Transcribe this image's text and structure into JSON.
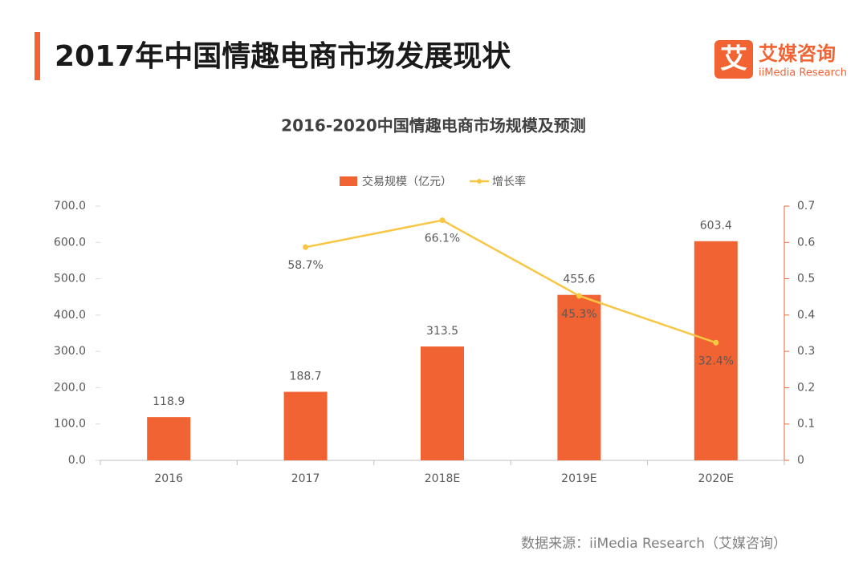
{
  "header": {
    "title": "2017年中国情趣电商市场发展现状",
    "logo": "艾",
    "brand": "艾媒咨询",
    "brand_en": "iiMedia Research"
  },
  "chart_data": {
    "type": "bar",
    "title": "2016-2020中国情趣电商市场规模及预测",
    "categories": [
      "2016",
      "2017",
      "2018E",
      "2019E",
      "2020E"
    ],
    "series": [
      {
        "name": "交易规模（亿元）",
        "type": "bar",
        "color": "#f26333",
        "values": [
          118.9,
          188.7,
          313.5,
          455.6,
          603.4
        ]
      },
      {
        "name": "增长率",
        "type": "line",
        "axis": "y2",
        "color": "#f7c744",
        "values": [
          null,
          0.587,
          0.661,
          0.453,
          0.324
        ],
        "value_labels": [
          null,
          "58.7%",
          "66.1%",
          "45.3%",
          "32.4%"
        ]
      }
    ],
    "ylim": [
      0,
      700
    ],
    "yticks": [
      {
        "value": 0,
        "label": "0.0"
      },
      {
        "value": 100,
        "label": "100.0"
      },
      {
        "value": 200,
        "label": "200.0"
      },
      {
        "value": 300,
        "label": "300.0"
      },
      {
        "value": 400,
        "label": "400.0"
      },
      {
        "value": 500,
        "label": "500.0"
      },
      {
        "value": 600,
        "label": "600.0"
      },
      {
        "value": 700,
        "label": "700.0"
      }
    ],
    "y2lim": [
      0,
      0.7
    ],
    "y2ticks": [
      0,
      0.1,
      0.2,
      0.3,
      0.4,
      0.5,
      0.6,
      0.7
    ],
    "legend": "top",
    "source": "数据来源：iiMedia Research（艾媒咨询）"
  }
}
